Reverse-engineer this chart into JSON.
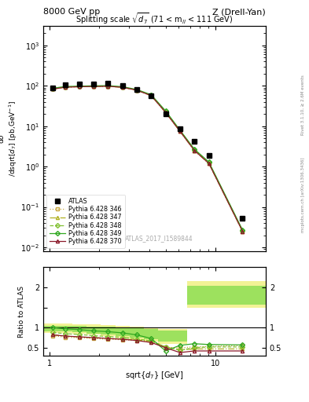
{
  "title_left": "8000 GeV pp",
  "title_right": "Z (Drell-Yan)",
  "plot_title": "Splitting scale $\\sqrt{d_7}$ (71 < m$_{ll}$ < 111 GeV)",
  "ylabel_main": "d$\\sigma$\n/dsqrt[$d_{7}$] [pb,GeV$^{-1}$]",
  "ylabel_ratio": "Ratio to ATLAS",
  "xlabel": "sqrt{$d_7$} [GeV]",
  "watermark": "ATLAS_2017_I1589844",
  "right_label1": "Rivet 3.1.10, ≥ 2.6M events",
  "right_label2": "mcplots.cern.ch [arXiv:1306.3436]",
  "atlas_x": [
    1.05,
    1.25,
    1.52,
    1.85,
    2.25,
    2.75,
    3.35,
    4.1,
    5.0,
    6.1,
    7.45,
    9.1,
    14.5
  ],
  "atlas_y": [
    88,
    108,
    112,
    112,
    115,
    100,
    82,
    56,
    20,
    8.5,
    4.2,
    1.9,
    0.052
  ],
  "xdata": [
    1.05,
    1.25,
    1.52,
    1.85,
    2.25,
    2.75,
    3.35,
    4.1,
    5.0,
    6.1,
    7.45,
    9.1,
    14.5
  ],
  "p346_y": [
    83,
    92,
    95,
    96,
    97,
    92,
    78,
    57,
    22,
    7.5,
    2.5,
    1.2,
    0.025
  ],
  "p347_y": [
    83,
    93,
    95,
    96,
    97,
    92,
    78,
    57,
    22,
    7.5,
    2.5,
    1.2,
    0.025
  ],
  "p348_y": [
    85,
    94,
    96,
    97,
    98,
    93,
    79,
    58,
    23,
    7.8,
    2.6,
    1.25,
    0.026
  ],
  "p349_y": [
    87,
    96,
    98,
    100,
    101,
    95,
    81,
    60,
    24,
    8.0,
    2.7,
    1.3,
    0.027
  ],
  "p370_y": [
    83,
    92,
    95,
    96,
    97,
    92,
    78,
    57,
    22,
    7.5,
    2.5,
    1.2,
    0.025
  ],
  "ratio_x": [
    1.05,
    1.25,
    1.52,
    1.85,
    2.25,
    2.75,
    3.35,
    4.1,
    5.0,
    6.1,
    7.45,
    9.1,
    14.5
  ],
  "r346": [
    0.8,
    0.76,
    0.75,
    0.73,
    0.71,
    0.7,
    0.68,
    0.65,
    0.51,
    0.5,
    0.52,
    0.53,
    0.56
  ],
  "r347": [
    0.82,
    0.79,
    0.77,
    0.75,
    0.74,
    0.72,
    0.69,
    0.67,
    0.52,
    0.45,
    0.47,
    0.47,
    0.47
  ],
  "r348": [
    0.88,
    0.85,
    0.83,
    0.8,
    0.78,
    0.76,
    0.72,
    0.67,
    0.52,
    0.44,
    0.5,
    0.52,
    0.52
  ],
  "r349": [
    1.0,
    0.97,
    0.95,
    0.92,
    0.9,
    0.87,
    0.82,
    0.73,
    0.42,
    0.56,
    0.6,
    0.58,
    0.57
  ],
  "r370": [
    0.82,
    0.79,
    0.77,
    0.75,
    0.73,
    0.71,
    0.68,
    0.63,
    0.5,
    0.38,
    0.42,
    0.42,
    0.42
  ],
  "band_x_edges": [
    0.92,
    1.15,
    1.38,
    1.68,
    2.04,
    2.49,
    3.04,
    3.71,
    4.52,
    5.52,
    6.73,
    8.21,
    11.5,
    20.0
  ],
  "band_yellow_lo": [
    0.87,
    0.87,
    0.85,
    0.82,
    0.79,
    0.75,
    0.7,
    0.65,
    0.6,
    0.6,
    1.5,
    1.5,
    1.5
  ],
  "band_yellow_hi": [
    1.1,
    1.1,
    1.09,
    1.08,
    1.06,
    1.04,
    1.02,
    1.0,
    0.97,
    0.97,
    2.15,
    2.15,
    2.15
  ],
  "band_green_lo": [
    0.9,
    0.9,
    0.88,
    0.85,
    0.83,
    0.8,
    0.76,
    0.72,
    0.65,
    0.65,
    1.58,
    1.58,
    1.58
  ],
  "band_green_hi": [
    1.05,
    1.05,
    1.04,
    1.03,
    1.02,
    1.0,
    0.98,
    0.96,
    0.93,
    0.93,
    2.05,
    2.05,
    2.05
  ],
  "color_346": "#c8a840",
  "color_347": "#b0b020",
  "color_348": "#80c030",
  "color_349": "#30a820",
  "color_370": "#8b1a2a",
  "xlim": [
    0.92,
    20.0
  ],
  "ylim_main": [
    0.008,
    3000
  ],
  "ylim_ratio": [
    0.3,
    2.5
  ],
  "ratio_yticks": [
    0.5,
    1.0,
    1.5,
    2.0
  ],
  "ratio_yticklabels": [
    "0.5",
    "1",
    "",
    "2"
  ]
}
